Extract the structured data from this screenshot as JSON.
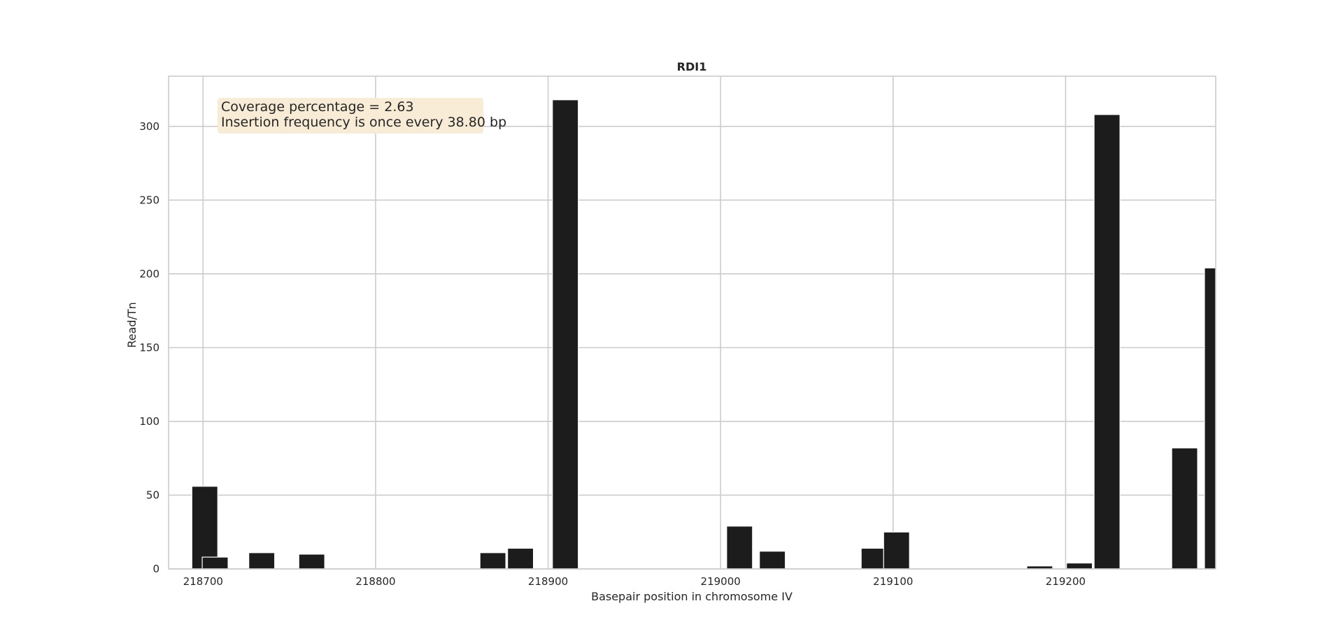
{
  "colors": {
    "bar": "#1c1c1c",
    "annotation_bg": "#f8ecd6",
    "grid": "#cccccc",
    "frame": "#cccccc"
  },
  "chart_data": {
    "type": "bar",
    "title": "RDI1",
    "xlabel": "Basepair position in chromosome IV",
    "ylabel": "Read/Tn",
    "xlim": [
      218680,
      219287
    ],
    "ylim": [
      0,
      334
    ],
    "xticks": [
      218700,
      218800,
      218900,
      219000,
      219100,
      219200
    ],
    "yticks": [
      0,
      50,
      100,
      150,
      200,
      250,
      300
    ],
    "grid": true,
    "annotation": {
      "lines": [
        "Coverage percentage = 2.63",
        "Insertion frequency is once every 38.80 bp"
      ],
      "placement": "top-left"
    },
    "bar_width_bp": 15,
    "positions": [
      218701,
      218707,
      218734,
      218763,
      218868,
      218884,
      218910,
      219011,
      219030,
      219089,
      219102,
      219185,
      219208,
      219224,
      219269,
      219288
    ],
    "values": [
      56,
      8,
      11,
      10,
      11,
      14,
      318,
      29,
      12,
      14,
      25,
      2,
      4,
      308,
      82,
      204
    ]
  }
}
